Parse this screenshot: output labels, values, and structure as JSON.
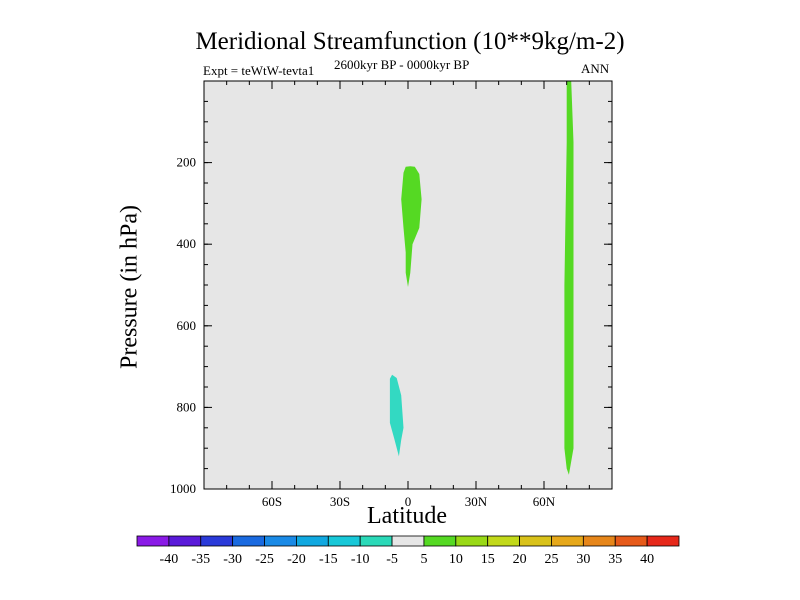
{
  "chart_data": {
    "type": "filled-contour",
    "title": "Meridional Streamfunction (10**9kg/m-2)",
    "subtitle_left": "Expt = teWtW-tevta1",
    "subtitle_center": "2600kyr BP - 0000kyr BP",
    "subtitle_right": "ANN",
    "xlabel": "Latitude",
    "ylabel": "Pressure (in hPa)",
    "x_range": [
      -90,
      90
    ],
    "y_range": [
      0,
      1000
    ],
    "y_inverted": true,
    "x_ticks": [
      {
        "v": -60,
        "label": "60S"
      },
      {
        "v": -30,
        "label": "30S"
      },
      {
        "v": 0,
        "label": "0"
      },
      {
        "v": 30,
        "label": "30N"
      },
      {
        "v": 60,
        "label": "60N"
      }
    ],
    "y_ticks": [
      {
        "v": 200,
        "label": "200"
      },
      {
        "v": 400,
        "label": "400"
      },
      {
        "v": 600,
        "label": "600"
      },
      {
        "v": 800,
        "label": "800"
      },
      {
        "v": 1000,
        "label": "1000"
      }
    ],
    "background_level": "-5 to 5",
    "background_color": "#e6e6e6",
    "regions": [
      {
        "name": "equatorial-upper-positive-cell",
        "level": "5 to 10",
        "color": "#55d923",
        "outline": [
          [
            -2,
            225
          ],
          [
            -1,
            210
          ],
          [
            1,
            209
          ],
          [
            3,
            210
          ],
          [
            5,
            228
          ],
          [
            6,
            290
          ],
          [
            5,
            360
          ],
          [
            2,
            400
          ],
          [
            1,
            470
          ],
          [
            0,
            505
          ],
          [
            -1,
            470
          ],
          [
            -1,
            420
          ],
          [
            -2,
            360
          ],
          [
            -3,
            290
          ]
        ]
      },
      {
        "name": "equatorial-lower-negative-cell",
        "level": "-10 to -5",
        "color": "#33d9c2",
        "outline": [
          [
            -7,
            720
          ],
          [
            -5,
            728
          ],
          [
            -3,
            770
          ],
          [
            -2,
            850
          ],
          [
            -3,
            880
          ],
          [
            -4,
            920
          ],
          [
            -6,
            878
          ],
          [
            -8,
            838
          ],
          [
            -8,
            780
          ],
          [
            -8,
            730
          ]
        ]
      },
      {
        "name": "north-60-positive-cell",
        "level": "5 to 10",
        "color": "#55d923",
        "outline": [
          [
            70,
            0
          ],
          [
            72,
            0
          ],
          [
            73,
            150
          ],
          [
            73,
            500
          ],
          [
            73,
            900
          ],
          [
            71,
            965
          ],
          [
            70,
            950
          ],
          [
            69,
            900
          ],
          [
            69,
            500
          ],
          [
            70,
            150
          ]
        ]
      }
    ],
    "colorbar": {
      "labels": [
        "-40",
        "-35",
        "-30",
        "-25",
        "-20",
        "-15",
        "-10",
        "-5",
        "5",
        "10",
        "15",
        "20",
        "25",
        "30",
        "35",
        "40"
      ],
      "colors": [
        "#8a1ae6",
        "#5a1ad9",
        "#2a3ad9",
        "#1a6ae0",
        "#1a8ae6",
        "#10a8e0",
        "#18c8d8",
        "#2ad9b8",
        "#e6e6e6",
        "#55d923",
        "#99d916",
        "#c2d91a",
        "#d9c21a",
        "#e6a81a",
        "#e6861a",
        "#e65a1a",
        "#e6281a"
      ]
    }
  }
}
